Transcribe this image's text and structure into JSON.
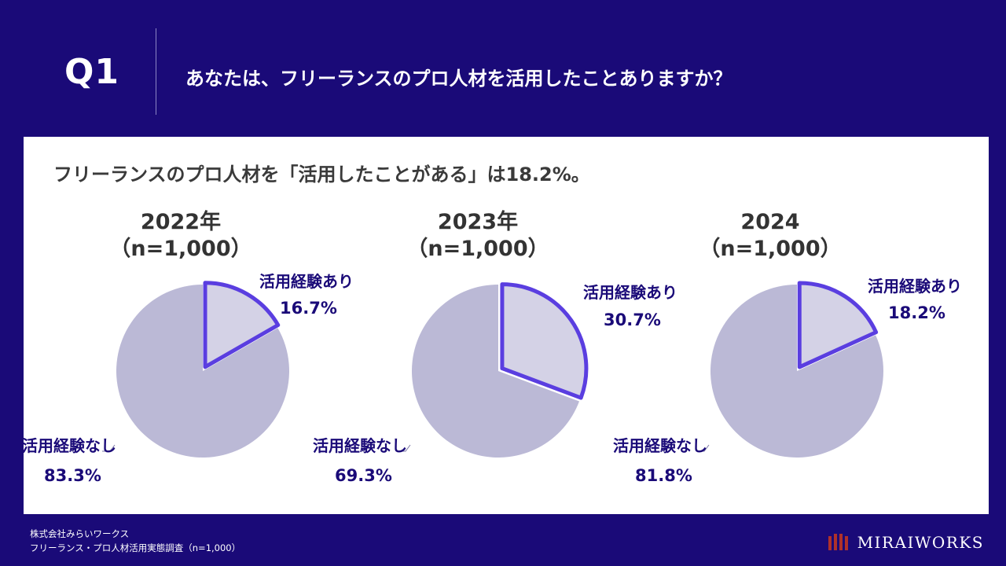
{
  "question": {
    "label": "Q1",
    "text": "あなたは、フリーランスのプロ人材を活用したことありますか？"
  },
  "headline": "フリーランスのプロ人材を「活用したことがある」は18.2%。",
  "chart_data": [
    {
      "type": "pie",
      "year_label": "2022年",
      "sample_label": "（n=1,000）",
      "slices": [
        {
          "label": "活用経験あり",
          "value": 16.7,
          "value_label": "16.7%",
          "color": "#d4d2e6",
          "stroke": "#5a3ee0"
        },
        {
          "label": "活用経験なし",
          "value": 83.3,
          "value_label": "83.3%",
          "color": "#bbb9d6"
        }
      ]
    },
    {
      "type": "pie",
      "year_label": "2023年",
      "sample_label": "（n=1,000）",
      "slices": [
        {
          "label": "活用経験あり",
          "value": 30.7,
          "value_label": "30.7%",
          "color": "#d4d2e6",
          "stroke": "#5a3ee0"
        },
        {
          "label": "活用経験なし",
          "value": 69.3,
          "value_label": "69.3%",
          "color": "#bbb9d6"
        }
      ]
    },
    {
      "type": "pie",
      "year_label": "2024",
      "sample_label": "（n=1,000）",
      "slices": [
        {
          "label": "活用経験あり",
          "value": 18.2,
          "value_label": "18.2%",
          "color": "#d4d2e6",
          "stroke": "#5a3ee0"
        },
        {
          "label": "活用経験なし",
          "value": 81.8,
          "value_label": "81.8%",
          "color": "#bbb9d6"
        }
      ]
    }
  ],
  "footer": {
    "company": "株式会社みらいワークス",
    "survey": "フリーランス・プロ人材活用実態調査（n=1,000）"
  },
  "logo": {
    "text": "MIRAIWORKS",
    "color": "#b0312a"
  },
  "colors": {
    "background": "#1a0a78",
    "accent": "#5a3ee0",
    "label": "#1a0a78"
  }
}
